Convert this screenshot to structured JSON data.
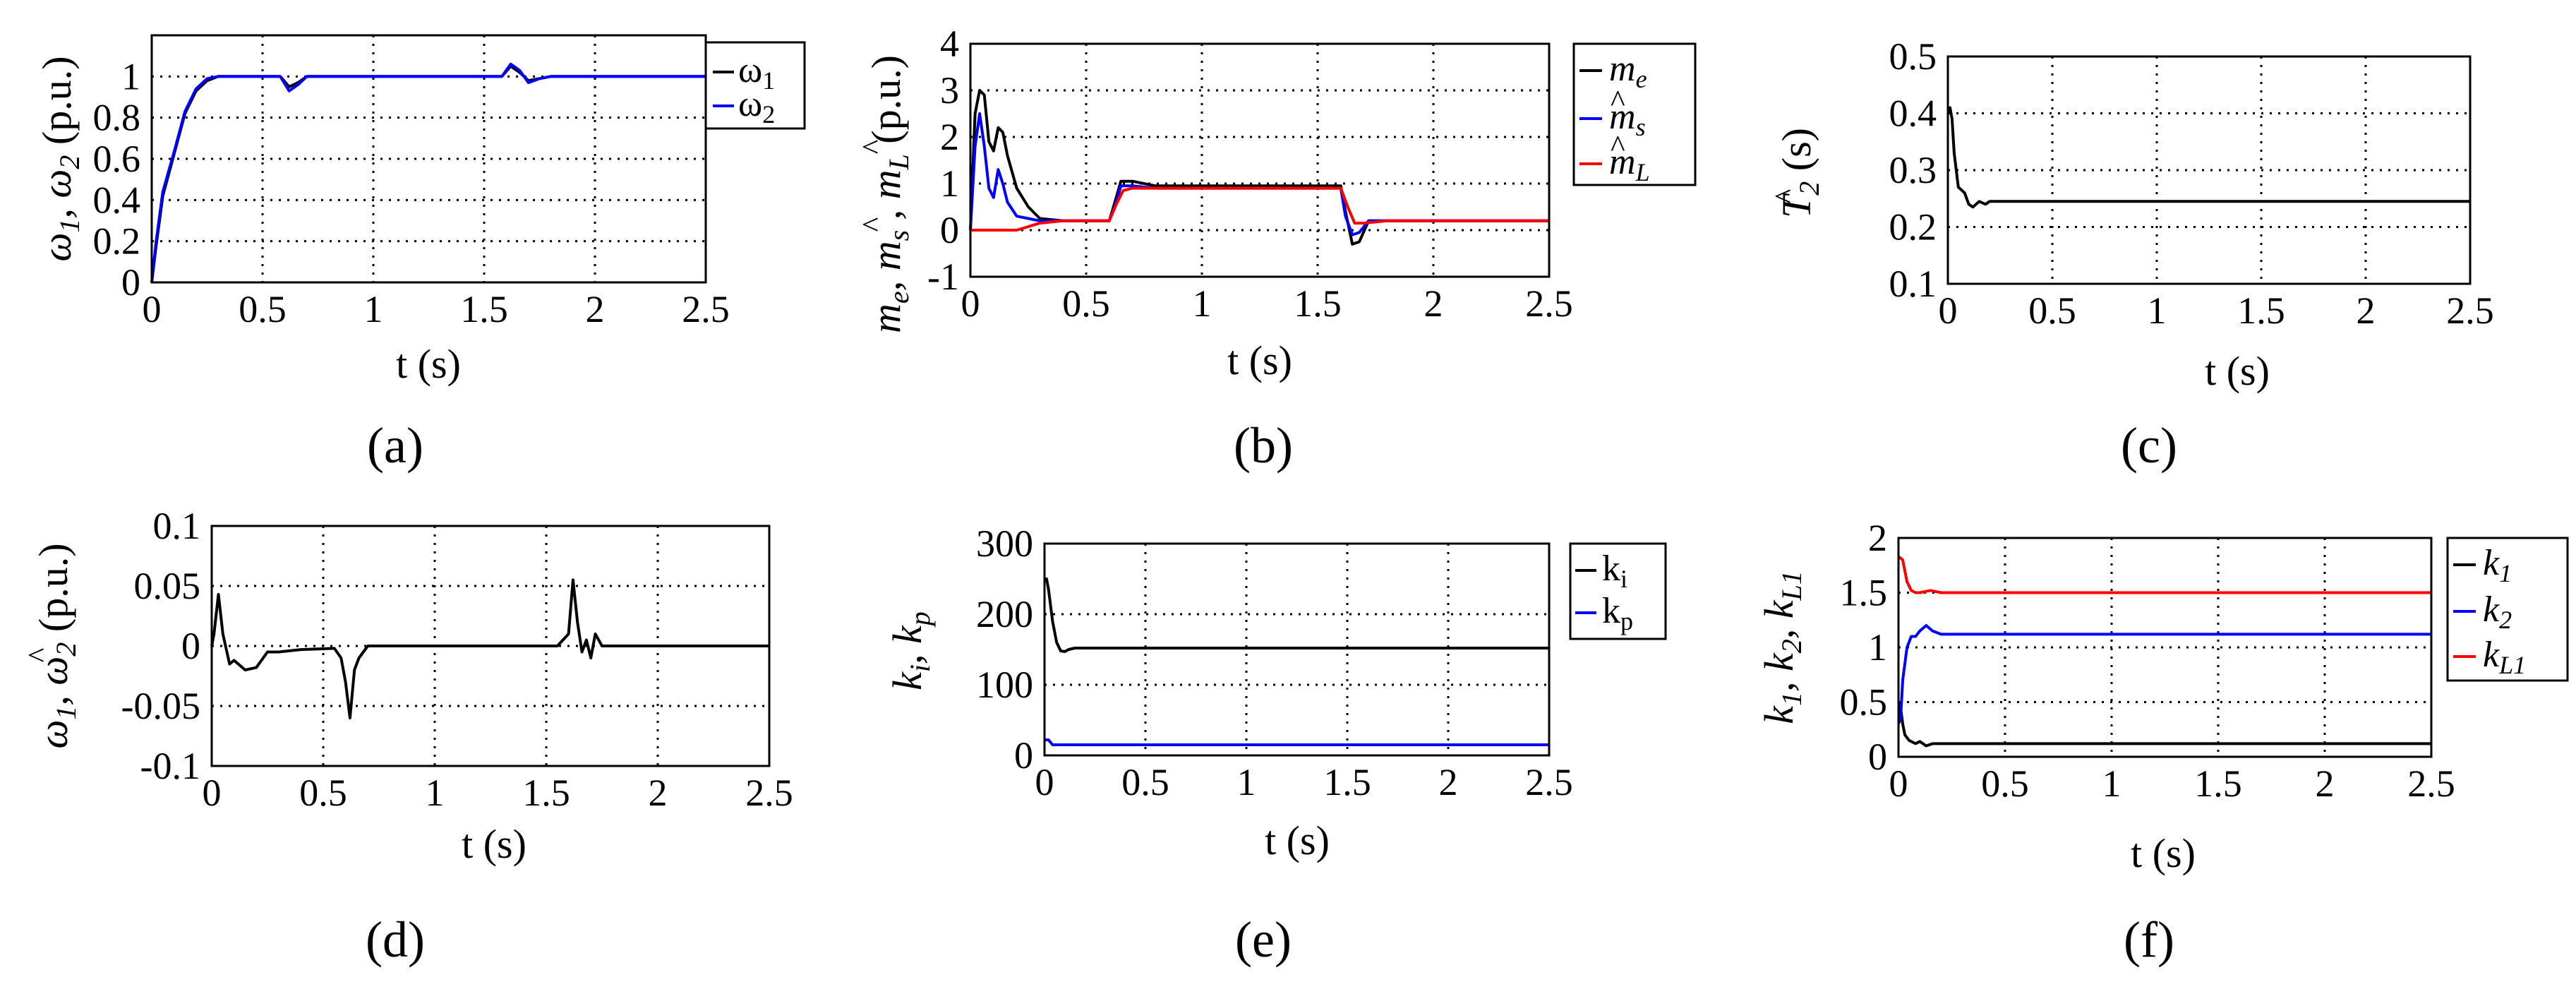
{
  "chart_data": [
    {
      "id": "a",
      "type": "line",
      "caption": "(a)",
      "xlabel": "t (s)",
      "ylabel": "ω1, ω2 (p.u.)",
      "xlim": [
        0,
        2.5
      ],
      "ylim": [
        0,
        1.2
      ],
      "xticks": [
        0,
        0.5,
        1,
        1.5,
        2,
        2.5
      ],
      "xtick_labels": [
        "0",
        "0.5",
        "1",
        "1.5",
        "2",
        "2.5"
      ],
      "yticks": [
        0,
        0.2,
        0.4,
        0.6,
        0.8,
        1
      ],
      "ytick_labels": [
        "0",
        "0.2",
        "0.4",
        "0.6",
        "0.8",
        "1"
      ],
      "grid": true,
      "legend_position": "outside-right",
      "series": [
        {
          "name": "ω1",
          "color": "#000000",
          "x": [
            0,
            0.02,
            0.05,
            0.1,
            0.15,
            0.2,
            0.25,
            0.3,
            0.35,
            0.5,
            0.58,
            0.62,
            0.66,
            0.7,
            0.8,
            1.0,
            1.5,
            1.58,
            1.62,
            1.66,
            1.7,
            1.75,
            1.8,
            2.0,
            2.5
          ],
          "values": [
            0,
            0.18,
            0.42,
            0.62,
            0.82,
            0.93,
            0.98,
            1.0,
            1.0,
            1.0,
            1.0,
            0.95,
            0.97,
            1.0,
            1.0,
            1.0,
            1.0,
            1.0,
            1.05,
            1.02,
            0.98,
            0.99,
            1.0,
            1.0,
            1.0
          ]
        },
        {
          "name": "ω2",
          "color": "#0000ff",
          "x": [
            0,
            0.02,
            0.05,
            0.1,
            0.15,
            0.2,
            0.25,
            0.3,
            0.35,
            0.5,
            0.58,
            0.62,
            0.66,
            0.7,
            0.8,
            1.0,
            1.5,
            1.58,
            1.62,
            1.66,
            1.7,
            1.75,
            1.8,
            2.0,
            2.5
          ],
          "values": [
            0,
            0.2,
            0.44,
            0.63,
            0.83,
            0.94,
            0.99,
            1.0,
            1.0,
            1.0,
            1.0,
            0.93,
            0.96,
            1.0,
            1.0,
            1.0,
            1.0,
            1.0,
            1.06,
            1.03,
            0.97,
            0.99,
            1.0,
            1.0,
            1.0
          ]
        }
      ]
    },
    {
      "id": "b",
      "type": "line",
      "caption": "(b)",
      "xlabel": "t (s)",
      "ylabel": "me, ms, mL (p.u.)",
      "xlim": [
        0,
        2.5
      ],
      "ylim": [
        -1,
        4
      ],
      "xticks": [
        0,
        0.5,
        1,
        1.5,
        2,
        2.5
      ],
      "xtick_labels": [
        "0",
        "0.5",
        "1",
        "1.5",
        "2",
        "2.5"
      ],
      "yticks": [
        -1,
        0,
        1,
        2,
        3,
        4
      ],
      "ytick_labels": [
        "-1",
        "0",
        "1",
        "2",
        "3",
        "4"
      ],
      "grid": true,
      "legend_position": "outside-right",
      "series": [
        {
          "name": "me",
          "color": "#000000",
          "x": [
            0,
            0.02,
            0.04,
            0.06,
            0.08,
            0.1,
            0.12,
            0.14,
            0.16,
            0.2,
            0.25,
            0.3,
            0.4,
            0.6,
            0.63,
            0.65,
            0.7,
            0.8,
            1.0,
            1.2,
            1.4,
            1.6,
            1.62,
            1.65,
            1.68,
            1.72,
            1.8,
            2.0,
            2.2,
            2.5
          ],
          "values": [
            0,
            2.5,
            3.0,
            2.9,
            1.9,
            1.7,
            2.2,
            2.1,
            1.6,
            0.9,
            0.5,
            0.25,
            0.2,
            0.2,
            0.7,
            1.05,
            1.05,
            0.95,
            0.95,
            0.95,
            0.95,
            0.95,
            0.4,
            -0.3,
            -0.25,
            0.2,
            0.2,
            0.2,
            0.2,
            0.2
          ]
        },
        {
          "name": "ms",
          "color": "#0000ff",
          "x": [
            0,
            0.02,
            0.04,
            0.06,
            0.08,
            0.1,
            0.12,
            0.14,
            0.16,
            0.2,
            0.25,
            0.3,
            0.4,
            0.6,
            0.63,
            0.65,
            0.7,
            0.8,
            1.0,
            1.2,
            1.4,
            1.6,
            1.62,
            1.65,
            1.68,
            1.72,
            1.8,
            2.0,
            2.2,
            2.5
          ],
          "values": [
            0,
            1.8,
            2.5,
            1.8,
            0.9,
            0.7,
            1.3,
            1.0,
            0.6,
            0.3,
            0.25,
            0.2,
            0.2,
            0.2,
            0.6,
            0.95,
            0.95,
            0.9,
            0.9,
            0.9,
            0.9,
            0.9,
            0.3,
            -0.1,
            -0.05,
            0.2,
            0.2,
            0.2,
            0.2,
            0.2
          ]
        },
        {
          "name": "mL",
          "color": "#ff0000",
          "x": [
            0,
            0.1,
            0.2,
            0.3,
            0.4,
            0.6,
            0.63,
            0.66,
            0.7,
            0.8,
            1.0,
            1.2,
            1.4,
            1.6,
            1.63,
            1.66,
            1.7,
            1.8,
            2.0,
            2.2,
            2.5
          ],
          "values": [
            0,
            0,
            0,
            0.15,
            0.2,
            0.2,
            0.55,
            0.85,
            0.9,
            0.9,
            0.9,
            0.9,
            0.9,
            0.9,
            0.5,
            0.15,
            0.15,
            0.2,
            0.2,
            0.2,
            0.2
          ]
        }
      ]
    },
    {
      "id": "c",
      "type": "line",
      "caption": "(c)",
      "xlabel": "t (s)",
      "ylabel": "T2 (s)",
      "xlim": [
        0,
        2.5
      ],
      "ylim": [
        0.1,
        0.5
      ],
      "xticks": [
        0,
        0.5,
        1,
        1.5,
        2,
        2.5
      ],
      "xtick_labels": [
        "0",
        "0.5",
        "1",
        "1.5",
        "2",
        "2.5"
      ],
      "yticks": [
        0.1,
        0.2,
        0.3,
        0.4,
        0.5
      ],
      "ytick_labels": [
        "0.1",
        "0.2",
        "0.3",
        "0.4",
        "0.5"
      ],
      "grid": true,
      "series": [
        {
          "name": "T2",
          "color": "#000000",
          "x": [
            0,
            0.01,
            0.02,
            0.03,
            0.05,
            0.08,
            0.1,
            0.12,
            0.15,
            0.18,
            0.2,
            0.25,
            0.5,
            1.0,
            1.5,
            2.0,
            2.5
          ],
          "values": [
            0.4,
            0.41,
            0.39,
            0.33,
            0.27,
            0.26,
            0.24,
            0.235,
            0.245,
            0.24,
            0.245,
            0.245,
            0.245,
            0.245,
            0.245,
            0.245,
            0.245
          ]
        }
      ]
    },
    {
      "id": "d",
      "type": "line",
      "caption": "(d)",
      "xlabel": "t (s)",
      "ylabel": "ω1, ω2 (p.u.)",
      "xlim": [
        0,
        2.5
      ],
      "ylim": [
        -0.1,
        0.1
      ],
      "xticks": [
        0,
        0.5,
        1,
        1.5,
        2,
        2.5
      ],
      "xtick_labels": [
        "0",
        "0.5",
        "1",
        "1.5",
        "2",
        "2.5"
      ],
      "yticks": [
        -0.1,
        -0.05,
        0,
        0.05,
        0.1
      ],
      "ytick_labels": [
        "-0.1",
        "-0.05",
        "0",
        "0.05",
        "0.1"
      ],
      "grid": true,
      "series": [
        {
          "name": "ω1-ω2",
          "color": "#000000",
          "x": [
            0,
            0.01,
            0.03,
            0.05,
            0.08,
            0.1,
            0.15,
            0.2,
            0.25,
            0.3,
            0.4,
            0.55,
            0.58,
            0.6,
            0.62,
            0.64,
            0.66,
            0.68,
            0.7,
            0.8,
            1.0,
            1.2,
            1.4,
            1.55,
            1.6,
            1.62,
            1.64,
            1.66,
            1.68,
            1.7,
            1.72,
            1.75,
            1.8,
            2.0,
            2.5
          ],
          "values": [
            0,
            0.01,
            0.043,
            0.01,
            -0.015,
            -0.012,
            -0.02,
            -0.018,
            -0.005,
            -0.005,
            -0.003,
            -0.002,
            -0.01,
            -0.03,
            -0.06,
            -0.02,
            -0.01,
            -0.005,
            0,
            0,
            0,
            0,
            0,
            0,
            0.01,
            0.055,
            0.02,
            -0.005,
            0.005,
            -0.01,
            0.01,
            0,
            0,
            0,
            0
          ]
        }
      ]
    },
    {
      "id": "e",
      "type": "line",
      "caption": "(e)",
      "xlabel": "t (s)",
      "ylabel": "ki, kp",
      "xlim": [
        0,
        2.5
      ],
      "ylim": [
        0,
        300
      ],
      "xticks": [
        0,
        0.5,
        1,
        1.5,
        2,
        2.5
      ],
      "xtick_labels": [
        "0",
        "0.5",
        "1",
        "1.5",
        "2",
        "2.5"
      ],
      "yticks": [
        0,
        100,
        200,
        300
      ],
      "ytick_labels": [
        "0",
        "100",
        "200",
        "300"
      ],
      "grid": true,
      "legend_position": "outside-right",
      "series": [
        {
          "name": "ki",
          "color": "#000000",
          "x": [
            0,
            0.01,
            0.02,
            0.04,
            0.06,
            0.08,
            0.1,
            0.12,
            0.15,
            0.2,
            0.5,
            1.0,
            1.5,
            2.0,
            2.5
          ],
          "values": [
            250,
            250,
            235,
            190,
            160,
            148,
            147,
            150,
            152,
            152,
            152,
            152,
            152,
            152,
            152
          ]
        },
        {
          "name": "kp",
          "color": "#0000ff",
          "x": [
            0,
            0.02,
            0.04,
            0.06,
            0.1,
            0.5,
            1.0,
            1.5,
            2.0,
            2.5
          ],
          "values": [
            22,
            22,
            15,
            15,
            15,
            15,
            15,
            15,
            15,
            15
          ]
        }
      ]
    },
    {
      "id": "f",
      "type": "line",
      "caption": "(f)",
      "xlabel": "t (s)",
      "ylabel": "k1, k2, kL1",
      "xlim": [
        0,
        2.5
      ],
      "ylim": [
        0,
        2
      ],
      "xticks": [
        0,
        0.5,
        1,
        1.5,
        2,
        2.5
      ],
      "xtick_labels": [
        "0",
        "0.5",
        "1",
        "1.5",
        "2",
        "2.5"
      ],
      "yticks": [
        0,
        0.5,
        1,
        1.5,
        2
      ],
      "ytick_labels": [
        "0",
        "0.5",
        "1",
        "1.5",
        "2"
      ],
      "grid": true,
      "legend_position": "outside-right",
      "series": [
        {
          "name": "k1",
          "color": "#000000",
          "x": [
            0,
            0.01,
            0.02,
            0.03,
            0.05,
            0.08,
            0.1,
            0.13,
            0.16,
            0.2,
            0.5,
            1.0,
            1.5,
            2.0,
            2.5
          ],
          "values": [
            0.5,
            0.45,
            0.3,
            0.2,
            0.15,
            0.12,
            0.14,
            0.1,
            0.12,
            0.12,
            0.12,
            0.12,
            0.12,
            0.12,
            0.12
          ]
        },
        {
          "name": "k2",
          "color": "#0000ff",
          "x": [
            0,
            0.01,
            0.02,
            0.04,
            0.06,
            0.08,
            0.1,
            0.13,
            0.16,
            0.2,
            0.5,
            1.0,
            1.5,
            2.0,
            2.5
          ],
          "values": [
            0.3,
            0.35,
            0.7,
            1.0,
            1.1,
            1.1,
            1.15,
            1.2,
            1.15,
            1.12,
            1.12,
            1.12,
            1.12,
            1.12,
            1.12
          ]
        },
        {
          "name": "kL1",
          "color": "#ff0000",
          "x": [
            0,
            0.02,
            0.04,
            0.06,
            0.08,
            0.1,
            0.15,
            0.2,
            0.5,
            1.0,
            1.5,
            2.0,
            2.5
          ],
          "values": [
            1.83,
            1.8,
            1.6,
            1.52,
            1.5,
            1.5,
            1.52,
            1.5,
            1.5,
            1.5,
            1.5,
            1.5,
            1.5
          ]
        }
      ]
    }
  ]
}
